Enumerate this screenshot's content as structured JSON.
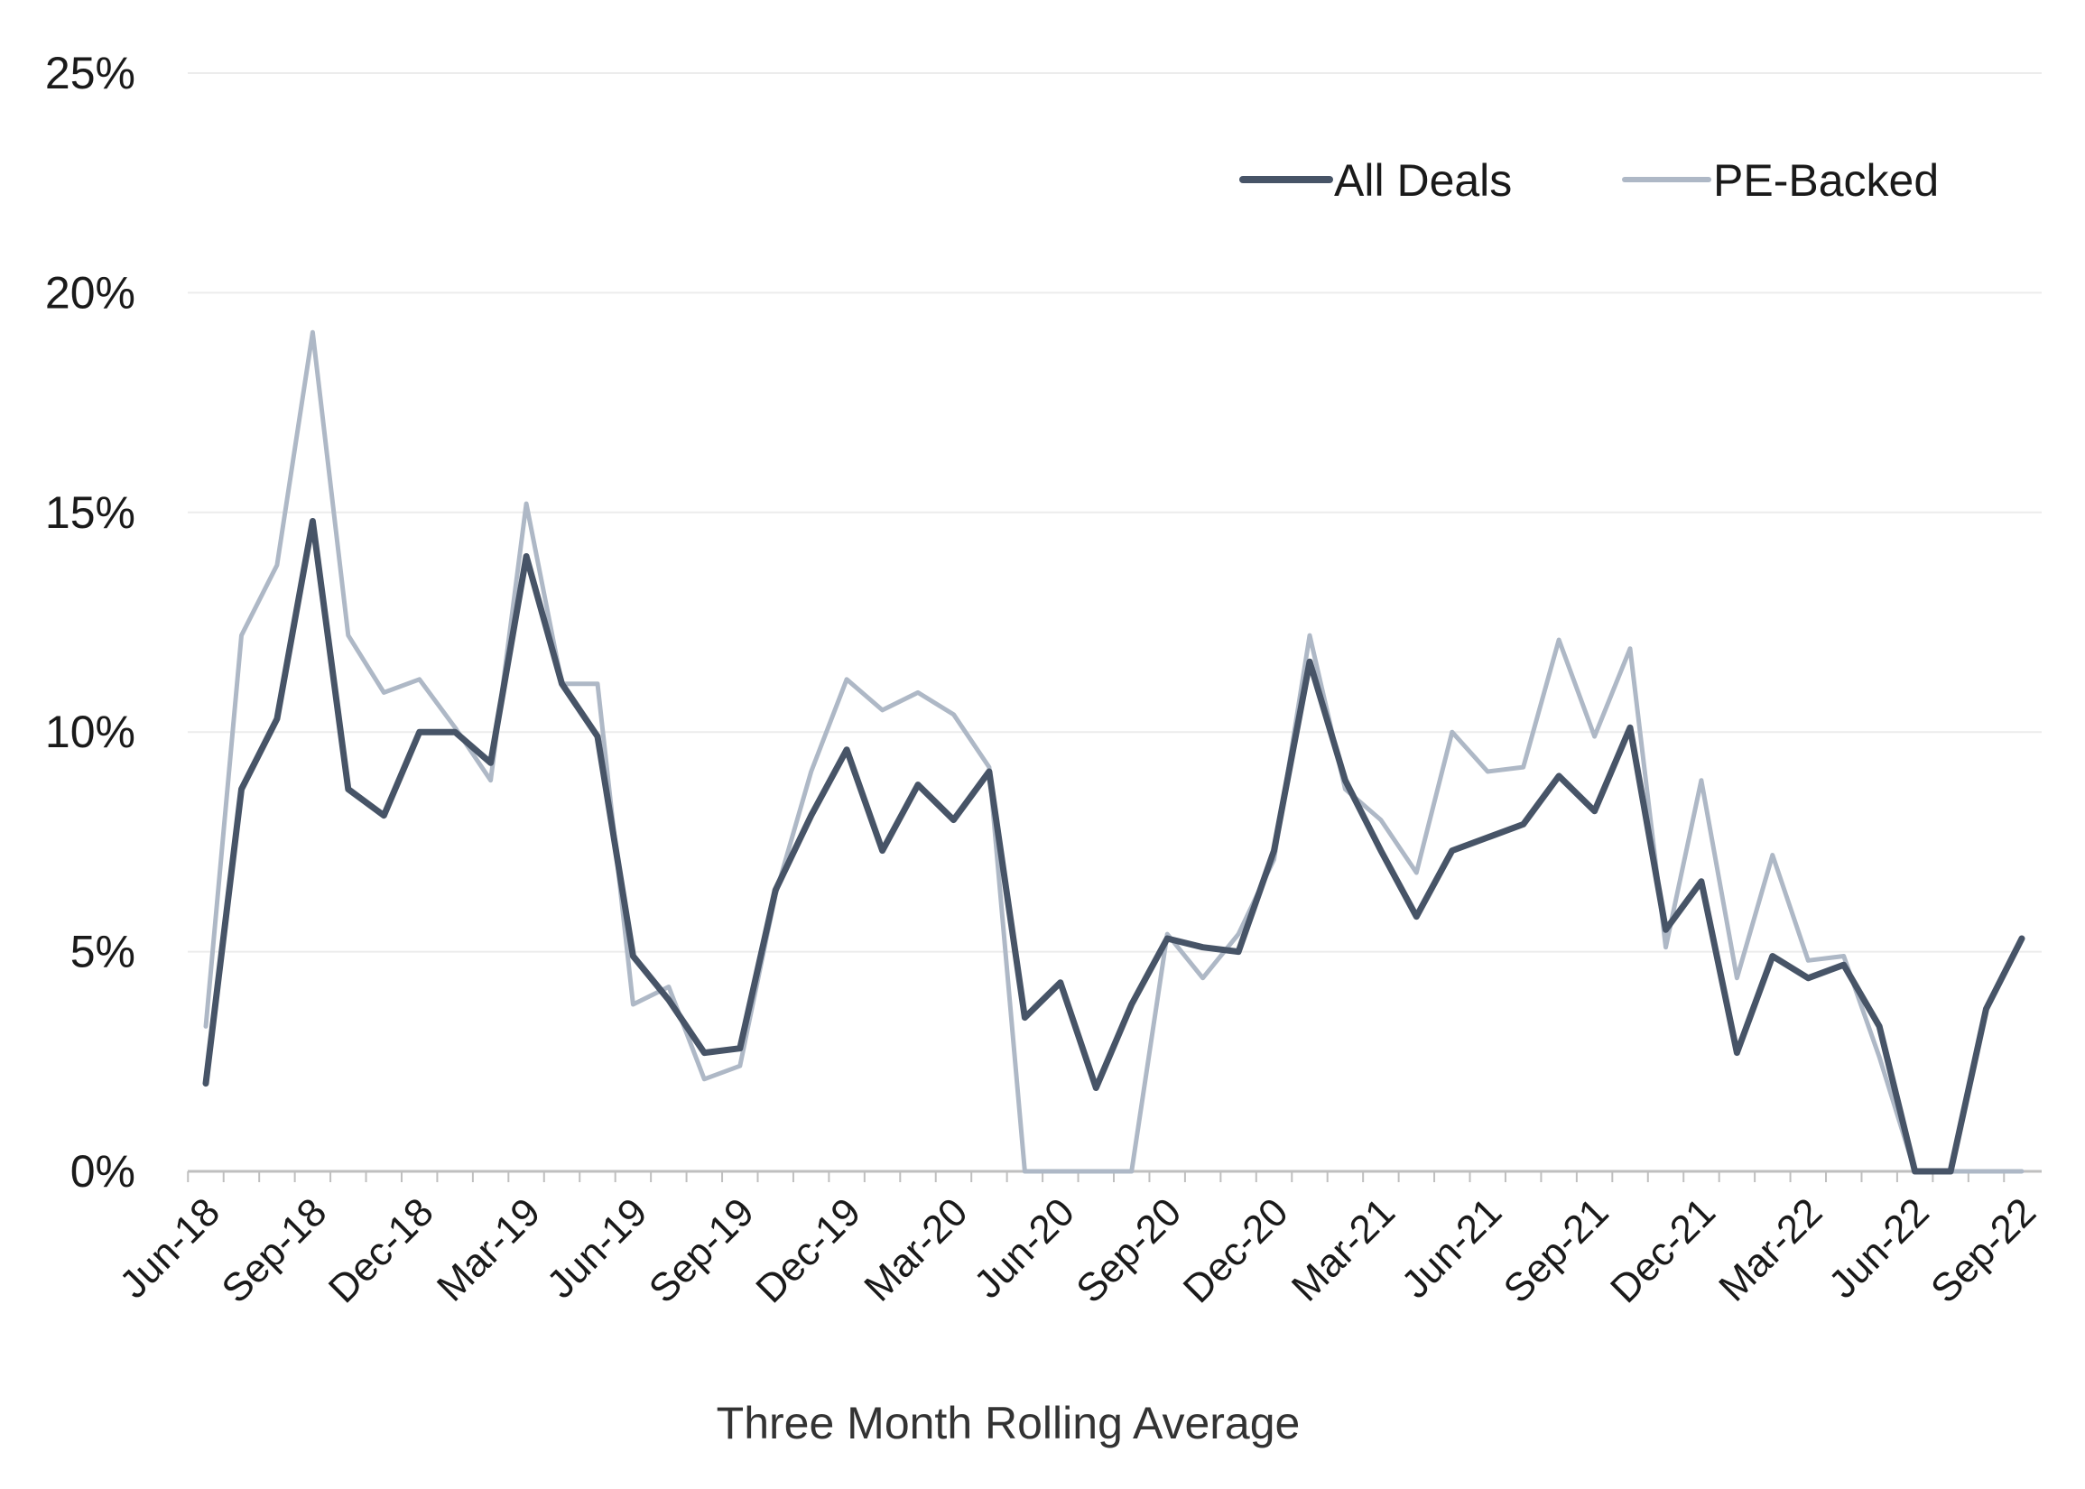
{
  "chart_data": {
    "type": "line",
    "xlabel": "Three Month Rolling Average",
    "ylabel": "",
    "ylim": [
      0,
      25
    ],
    "ytick_values": [
      0,
      5,
      10,
      15,
      20,
      25
    ],
    "ytick_labels": [
      "0%",
      "5%",
      "10%",
      "15%",
      "20%",
      "25%"
    ],
    "grid": true,
    "legend_position": "top-right",
    "categories": [
      "Jun-18",
      "Jul-18",
      "Aug-18",
      "Sep-18",
      "Oct-18",
      "Nov-18",
      "Dec-18",
      "Jan-19",
      "Feb-19",
      "Mar-19",
      "Apr-19",
      "May-19",
      "Jun-19",
      "Jul-19",
      "Aug-19",
      "Sep-19",
      "Oct-19",
      "Nov-19",
      "Dec-19",
      "Jan-20",
      "Feb-20",
      "Mar-20",
      "Apr-20",
      "May-20",
      "Jun-20",
      "Jul-20",
      "Aug-20",
      "Sep-20",
      "Oct-20",
      "Nov-20",
      "Dec-20",
      "Jan-21",
      "Feb-21",
      "Mar-21",
      "Apr-21",
      "May-21",
      "Jun-21",
      "Jul-21",
      "Aug-21",
      "Sep-21",
      "Oct-21",
      "Nov-21",
      "Dec-21",
      "Jan-22",
      "Feb-22",
      "Mar-22",
      "Apr-22",
      "May-22",
      "Jun-22",
      "Jul-22",
      "Aug-22",
      "Sep-22"
    ],
    "xtick_labels": [
      "Jun-18",
      "Sep-18",
      "Dec-18",
      "Mar-19",
      "Jun-19",
      "Sep-19",
      "Dec-19",
      "Mar-20",
      "Jun-20",
      "Sep-20",
      "Dec-20",
      "Mar-21",
      "Jun-21",
      "Sep-21",
      "Dec-21",
      "Mar-22",
      "Jun-22",
      "Sep-22"
    ],
    "series": [
      {
        "name": "All Deals",
        "color": "#475467",
        "values": [
          2.0,
          8.7,
          10.3,
          14.8,
          8.7,
          8.1,
          10.0,
          10.0,
          9.3,
          14.0,
          11.1,
          9.9,
          4.9,
          3.9,
          2.7,
          2.8,
          6.4,
          8.1,
          9.6,
          7.3,
          8.8,
          8.0,
          9.1,
          3.5,
          4.3,
          1.9,
          3.8,
          5.3,
          5.1,
          5.0,
          7.3,
          11.6,
          8.9,
          7.3,
          5.8,
          7.3,
          7.6,
          7.9,
          9.0,
          8.2,
          10.1,
          5.5,
          6.6,
          2.7,
          4.9,
          4.4,
          4.7,
          3.3,
          0.0,
          0.0,
          3.7,
          5.3
        ]
      },
      {
        "name": "PE-Backed",
        "color": "#aeb8c6",
        "values": [
          3.3,
          12.2,
          13.8,
          19.1,
          12.2,
          10.9,
          11.2,
          10.1,
          8.9,
          15.2,
          11.1,
          11.1,
          3.8,
          4.2,
          2.1,
          2.4,
          6.3,
          9.1,
          11.2,
          10.5,
          10.9,
          10.4,
          9.2,
          0.0,
          0.0,
          0.0,
          0.0,
          5.4,
          4.4,
          5.4,
          7.1,
          12.2,
          8.7,
          8.0,
          6.8,
          10.0,
          9.1,
          9.2,
          12.1,
          9.9,
          11.9,
          5.1,
          8.9,
          4.4,
          7.2,
          4.8,
          4.9,
          2.6,
          0.0,
          0.0,
          0.0,
          0.0
        ]
      }
    ]
  }
}
